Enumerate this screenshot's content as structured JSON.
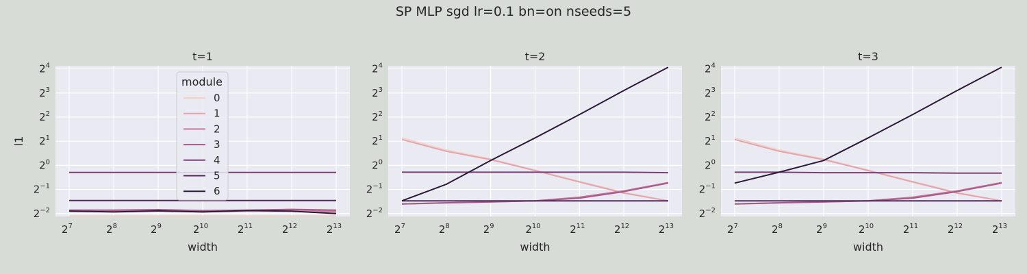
{
  "figure": {
    "title": "SP MLP sgd lr=0.1 bn=on nseeds=5"
  },
  "legend": {
    "title": "module",
    "entries": [
      "0",
      "1",
      "2",
      "3",
      "4",
      "5",
      "6"
    ]
  },
  "colors": {
    "background": "#d7ddd6",
    "plot_area": "#eaeaf2",
    "grid": "#ffffff",
    "series": [
      "#f0d2cc",
      "#e3a5ad",
      "#c77a98",
      "#a45a8a",
      "#7a3f76",
      "#4f2a5a",
      "#2b1a37"
    ]
  },
  "chart_data": [
    {
      "type": "line",
      "title": "t=1",
      "xlabel": "width",
      "ylabel": "l1",
      "x_scale": "log2",
      "y_scale": "log2",
      "x": [
        128,
        256,
        512,
        1024,
        2048,
        4096,
        8192
      ],
      "xticks": [
        {
          "b": "2",
          "e": "7"
        },
        {
          "b": "2",
          "e": "8"
        },
        {
          "b": "2",
          "e": "9"
        },
        {
          "b": "2",
          "e": "10"
        },
        {
          "b": "2",
          "e": "11"
        },
        {
          "b": "2",
          "e": "12"
        },
        {
          "b": "2",
          "e": "13"
        }
      ],
      "yticks": [
        {
          "b": "2",
          "e": "−2"
        },
        {
          "b": "2",
          "e": "−1"
        },
        {
          "b": "2",
          "e": "0"
        },
        {
          "b": "2",
          "e": "1"
        },
        {
          "b": "2",
          "e": "2"
        },
        {
          "b": "2",
          "e": "3"
        },
        {
          "b": "2",
          "e": "4"
        }
      ],
      "ylim": [
        0.23,
        17.5
      ],
      "series": [
        {
          "name": "0",
          "values": [
            0.233,
            0.233,
            0.233,
            0.233,
            0.233,
            0.233,
            0.233
          ]
        },
        {
          "name": "1",
          "values": [
            0.27,
            0.265,
            0.272,
            0.262,
            0.27,
            0.275,
            0.262
          ]
        },
        {
          "name": "2",
          "values": [
            0.272,
            0.27,
            0.275,
            0.265,
            0.272,
            0.28,
            0.265
          ]
        },
        {
          "name": "3",
          "values": [
            0.276,
            0.276,
            0.28,
            0.272,
            0.276,
            0.282,
            0.276
          ]
        },
        {
          "name": "4",
          "values": [
            0.815,
            0.815,
            0.815,
            0.815,
            0.815,
            0.815,
            0.815
          ]
        },
        {
          "name": "5",
          "values": [
            0.364,
            0.364,
            0.364,
            0.364,
            0.364,
            0.364,
            0.364
          ]
        },
        {
          "name": "6",
          "values": [
            0.268,
            0.262,
            0.27,
            0.262,
            0.272,
            0.268,
            0.25
          ]
        }
      ]
    },
    {
      "type": "line",
      "title": "t=2",
      "xlabel": "width",
      "ylabel": "",
      "x_scale": "log2",
      "y_scale": "log2",
      "x": [
        128,
        256,
        512,
        1024,
        2048,
        4096,
        8192
      ],
      "xticks": [
        {
          "b": "2",
          "e": "7"
        },
        {
          "b": "2",
          "e": "8"
        },
        {
          "b": "2",
          "e": "9"
        },
        {
          "b": "2",
          "e": "10"
        },
        {
          "b": "2",
          "e": "11"
        },
        {
          "b": "2",
          "e": "12"
        },
        {
          "b": "2",
          "e": "13"
        }
      ],
      "yticks": [
        {
          "b": "2",
          "e": "−2"
        },
        {
          "b": "2",
          "e": "−1"
        },
        {
          "b": "2",
          "e": "0"
        },
        {
          "b": "2",
          "e": "1"
        },
        {
          "b": "2",
          "e": "2"
        },
        {
          "b": "2",
          "e": "3"
        },
        {
          "b": "2",
          "e": "4"
        }
      ],
      "ylim": [
        0.23,
        17.5
      ],
      "series": [
        {
          "name": "0",
          "values": [
            2.2,
            1.55,
            1.2,
            0.87,
            0.63,
            0.46,
            0.36
          ]
        },
        {
          "name": "1",
          "values": [
            2.1,
            1.5,
            1.18,
            0.86,
            0.62,
            0.45,
            0.36
          ]
        },
        {
          "name": "2",
          "values": [
            0.33,
            0.34,
            0.35,
            0.36,
            0.4,
            0.48,
            0.61
          ]
        },
        {
          "name": "3",
          "values": [
            0.33,
            0.34,
            0.35,
            0.36,
            0.39,
            0.47,
            0.6
          ]
        },
        {
          "name": "4",
          "values": [
            0.82,
            0.82,
            0.82,
            0.82,
            0.82,
            0.82,
            0.81
          ]
        },
        {
          "name": "5",
          "values": [
            0.36,
            0.36,
            0.36,
            0.36,
            0.36,
            0.36,
            0.36
          ]
        },
        {
          "name": "6",
          "values": [
            0.36,
            0.58,
            1.15,
            2.2,
            4.3,
            8.6,
            16.8
          ]
        }
      ]
    },
    {
      "type": "line",
      "title": "t=3",
      "xlabel": "width",
      "ylabel": "",
      "x_scale": "log2",
      "y_scale": "log2",
      "x": [
        128,
        256,
        512,
        1024,
        2048,
        4096,
        8192
      ],
      "xticks": [
        {
          "b": "2",
          "e": "7"
        },
        {
          "b": "2",
          "e": "8"
        },
        {
          "b": "2",
          "e": "9"
        },
        {
          "b": "2",
          "e": "10"
        },
        {
          "b": "2",
          "e": "11"
        },
        {
          "b": "2",
          "e": "12"
        },
        {
          "b": "2",
          "e": "13"
        }
      ],
      "yticks": [
        {
          "b": "2",
          "e": "−2"
        },
        {
          "b": "2",
          "e": "−1"
        },
        {
          "b": "2",
          "e": "0"
        },
        {
          "b": "2",
          "e": "1"
        },
        {
          "b": "2",
          "e": "2"
        },
        {
          "b": "2",
          "e": "3"
        },
        {
          "b": "2",
          "e": "4"
        }
      ],
      "ylim": [
        0.23,
        17.5
      ],
      "series": [
        {
          "name": "0",
          "values": [
            2.2,
            1.55,
            1.2,
            0.87,
            0.63,
            0.46,
            0.36
          ]
        },
        {
          "name": "1",
          "values": [
            2.1,
            1.5,
            1.18,
            0.86,
            0.62,
            0.45,
            0.36
          ]
        },
        {
          "name": "2",
          "values": [
            0.33,
            0.34,
            0.35,
            0.36,
            0.4,
            0.48,
            0.61
          ]
        },
        {
          "name": "3",
          "values": [
            0.33,
            0.34,
            0.35,
            0.36,
            0.39,
            0.47,
            0.6
          ]
        },
        {
          "name": "4",
          "values": [
            0.82,
            0.82,
            0.81,
            0.81,
            0.81,
            0.8,
            0.8
          ]
        },
        {
          "name": "5",
          "values": [
            0.36,
            0.36,
            0.36,
            0.36,
            0.36,
            0.36,
            0.36
          ]
        },
        {
          "name": "6",
          "values": [
            0.6,
            0.82,
            1.15,
            2.2,
            4.3,
            8.6,
            16.8
          ]
        }
      ]
    }
  ]
}
